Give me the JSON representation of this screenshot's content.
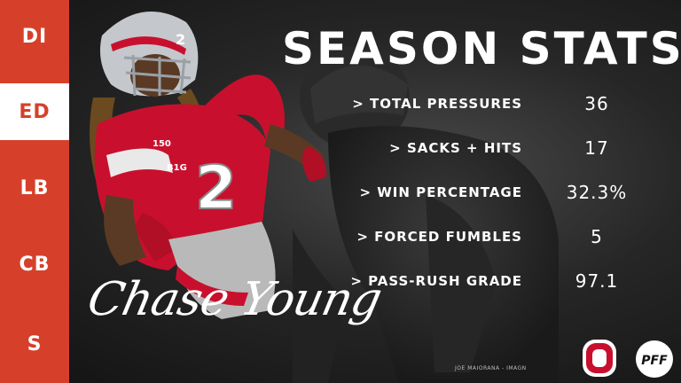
{
  "nav": {
    "items": [
      {
        "label": "DI",
        "active": false
      },
      {
        "label": "ED",
        "active": true
      },
      {
        "label": "LB",
        "active": false
      },
      {
        "label": "CB",
        "active": false
      },
      {
        "label": "S",
        "active": false
      }
    ]
  },
  "title": "SEASON STATS",
  "stats": [
    {
      "label": "> TOTAL PRESSURES",
      "value": "36"
    },
    {
      "label": "> SACKS + HITS",
      "value": "17"
    },
    {
      "label": "> WIN PERCENTAGE",
      "value": "32.3%"
    },
    {
      "label": "> FORCED FUMBLES",
      "value": "5"
    },
    {
      "label": "> PASS-RUSH GRADE",
      "value": "97.1"
    }
  ],
  "player": {
    "signature": "Chase Young",
    "jersey_number": "2",
    "helmet_number": "2",
    "patch_text": "150",
    "conference": "B1G"
  },
  "photo_credit": "JOE MAIORANA - IMAGN",
  "logos": {
    "team": "O",
    "brand": "PFF"
  },
  "colors": {
    "accent": "#d6402b",
    "active_nav_bg": "#ffffff",
    "text": "#ffffff"
  }
}
